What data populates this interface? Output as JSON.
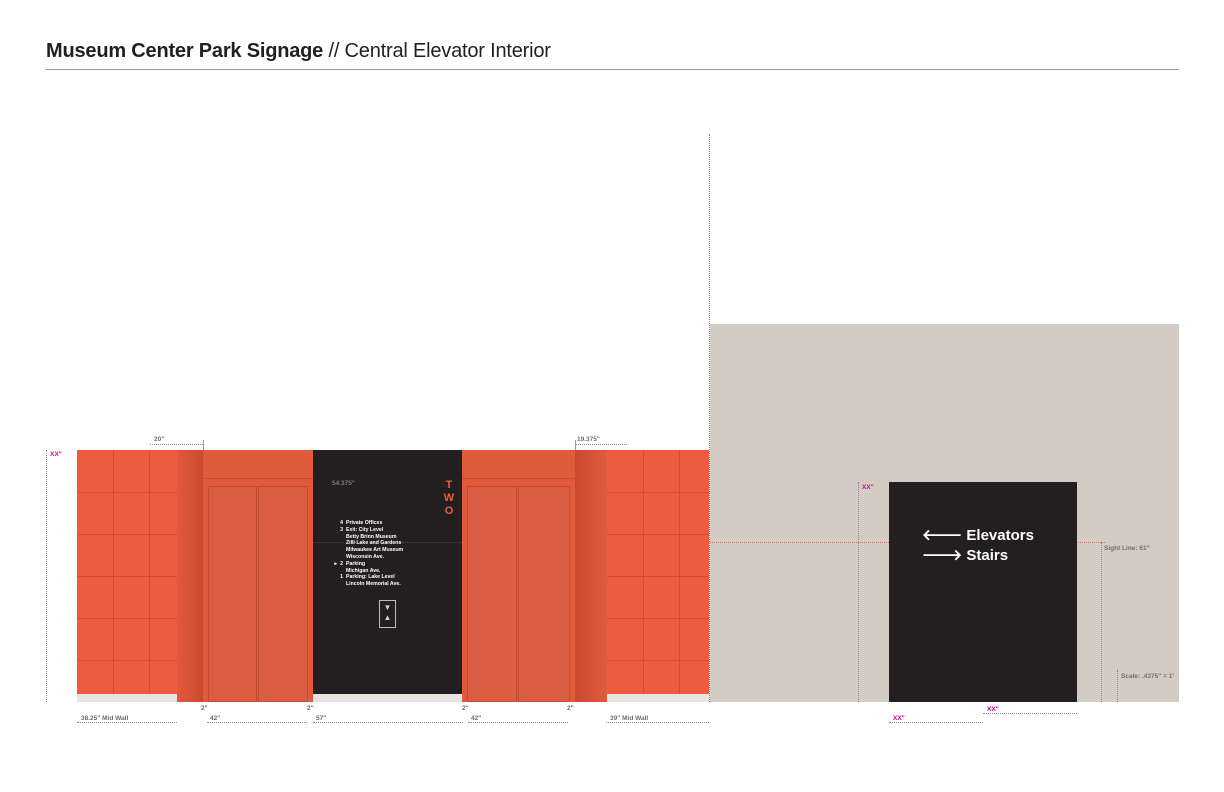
{
  "header": {
    "title_bold": "Museum Center Park Signage",
    "title_rest": " // Central Elevator Interior"
  },
  "elevation": {
    "wall_height_label": "XX\"",
    "top_left_dim": "20\"",
    "top_right_dim": "19.375\"",
    "inner_dim": "54.375\"",
    "floor_vertical": "TWO",
    "floor_letters": [
      "T",
      "W",
      "O"
    ],
    "directory": [
      {
        "num": "4",
        "label": "Private Offices",
        "indent": false,
        "marker": ""
      },
      {
        "num": "3",
        "label": "Exit: City Level",
        "indent": false,
        "marker": ""
      },
      {
        "num": "",
        "label": "Betty Brinn Museum",
        "indent": true,
        "marker": ""
      },
      {
        "num": "",
        "label": "Zilli Lake and Gardens",
        "indent": true,
        "marker": ""
      },
      {
        "num": "",
        "label": "Milwaukee Art Museum",
        "indent": true,
        "marker": ""
      },
      {
        "num": "",
        "label": "Wisconsin Ave.",
        "indent": true,
        "marker": ""
      },
      {
        "num": "2",
        "label": "Parking",
        "indent": false,
        "marker": "▸"
      },
      {
        "num": "",
        "label": "Michigan Ave.",
        "indent": true,
        "marker": ""
      },
      {
        "num": "1",
        "label": "Parking: Lake Level",
        "indent": false,
        "marker": ""
      },
      {
        "num": "",
        "label": "Lincoln Memorial Ave.",
        "indent": true,
        "marker": ""
      }
    ],
    "call_button_symbols": [
      "▼",
      "▲"
    ],
    "bottom_small_dims": [
      "2\"",
      "2\"",
      "2\"",
      "2\""
    ],
    "bottom_dims": [
      "38.25\" Mid Wall",
      "42\"",
      "57\"",
      "42\"",
      "39\" Mid Wall"
    ]
  },
  "sign": {
    "height_label": "XX\"",
    "lines": [
      {
        "arrow": "🡐",
        "label": "Elevators"
      },
      {
        "arrow": "🡒",
        "label": "Stairs"
      }
    ],
    "sight_line": "Sight Line: 61\"",
    "scale": "Scale: .4375\" = 1'",
    "bottom_dims": [
      "XX\"",
      "XX\""
    ]
  },
  "colors": {
    "orange": "#ef5b3e",
    "black": "#231f20",
    "beige": "#d3ccc4",
    "magenta": "#d6008f"
  }
}
